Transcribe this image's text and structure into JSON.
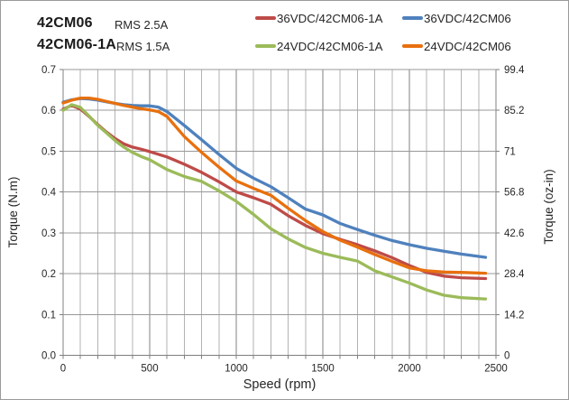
{
  "header": {
    "model_1": "42CM06",
    "rms_1": "RMS 2.5A",
    "model_2": "42CM06-1A",
    "rms_2": "RMS 1.5A"
  },
  "legend": {
    "position": "top-right",
    "items": [
      {
        "label": "36VDC/42CM06-1A",
        "color": "#BE4B48"
      },
      {
        "label": "36VDC/42CM06",
        "color": "#4F81BD"
      },
      {
        "label": "24VDC/42CM06-1A",
        "color": "#9BBB59"
      },
      {
        "label": "24VDC/42CM06",
        "color": "#E8700E"
      }
    ]
  },
  "chart_data": {
    "type": "line",
    "title": "",
    "xlabel": "Speed (rpm)",
    "ylabel_left": "Torque (N.m)",
    "ylabel_right": "Torque (oz-in)",
    "xlim": [
      0,
      2500
    ],
    "ylim_left": [
      0,
      0.7
    ],
    "ylim_right": [
      0,
      99.4
    ],
    "x_ticks": [
      "0",
      "500",
      "1000",
      "1500",
      "2000",
      "2500"
    ],
    "x_minor_step_rpm": 100,
    "y_ticks_left": [
      "0.0",
      "0.1",
      "0.2",
      "0.3",
      "0.4",
      "0.5",
      "0.6",
      "0.7"
    ],
    "y_ticks_right": [
      "0",
      "14.2",
      "28.4",
      "42.6",
      "56.8",
      "71",
      "85.2",
      "99.4"
    ],
    "grid": true,
    "colors": {
      "grid_minor_v": "#b3b3b3",
      "grid_major_v": "#818181",
      "grid_h": "#989898",
      "axis": "#7f7f7f",
      "tick_text": "#262626"
    },
    "series": [
      {
        "name": "36VDC/42CM06-1A",
        "color": "#BE4B48",
        "points": [
          [
            0,
            0.603
          ],
          [
            50,
            0.612
          ],
          [
            100,
            0.603
          ],
          [
            150,
            0.585
          ],
          [
            200,
            0.565
          ],
          [
            250,
            0.547
          ],
          [
            300,
            0.531
          ],
          [
            350,
            0.518
          ],
          [
            400,
            0.51
          ],
          [
            450,
            0.505
          ],
          [
            500,
            0.499
          ],
          [
            600,
            0.486
          ],
          [
            700,
            0.468
          ],
          [
            800,
            0.448
          ],
          [
            900,
            0.425
          ],
          [
            1000,
            0.4
          ],
          [
            1100,
            0.386
          ],
          [
            1200,
            0.37
          ],
          [
            1300,
            0.342
          ],
          [
            1400,
            0.318
          ],
          [
            1500,
            0.298
          ],
          [
            1600,
            0.284
          ],
          [
            1700,
            0.271
          ],
          [
            1800,
            0.256
          ],
          [
            1900,
            0.239
          ],
          [
            2000,
            0.22
          ],
          [
            2100,
            0.203
          ],
          [
            2200,
            0.194
          ],
          [
            2300,
            0.19
          ],
          [
            2440,
            0.188
          ]
        ]
      },
      {
        "name": "36VDC/42CM06",
        "color": "#4F81BD",
        "points": [
          [
            0,
            0.62
          ],
          [
            50,
            0.626
          ],
          [
            100,
            0.629
          ],
          [
            150,
            0.628
          ],
          [
            200,
            0.625
          ],
          [
            250,
            0.621
          ],
          [
            300,
            0.617
          ],
          [
            350,
            0.614
          ],
          [
            400,
            0.612
          ],
          [
            450,
            0.611
          ],
          [
            500,
            0.611
          ],
          [
            550,
            0.608
          ],
          [
            600,
            0.597
          ],
          [
            700,
            0.563
          ],
          [
            800,
            0.528
          ],
          [
            900,
            0.492
          ],
          [
            1000,
            0.458
          ],
          [
            1100,
            0.434
          ],
          [
            1200,
            0.413
          ],
          [
            1300,
            0.386
          ],
          [
            1400,
            0.358
          ],
          [
            1500,
            0.344
          ],
          [
            1600,
            0.323
          ],
          [
            1700,
            0.308
          ],
          [
            1800,
            0.294
          ],
          [
            1900,
            0.281
          ],
          [
            2000,
            0.271
          ],
          [
            2100,
            0.262
          ],
          [
            2200,
            0.255
          ],
          [
            2300,
            0.248
          ],
          [
            2440,
            0.24
          ]
        ]
      },
      {
        "name": "24VDC/42CM06-1A",
        "color": "#9BBB59",
        "points": [
          [
            0,
            0.6
          ],
          [
            50,
            0.614
          ],
          [
            100,
            0.607
          ],
          [
            150,
            0.586
          ],
          [
            200,
            0.563
          ],
          [
            250,
            0.545
          ],
          [
            300,
            0.526
          ],
          [
            350,
            0.51
          ],
          [
            400,
            0.497
          ],
          [
            450,
            0.487
          ],
          [
            500,
            0.479
          ],
          [
            600,
            0.455
          ],
          [
            700,
            0.438
          ],
          [
            800,
            0.426
          ],
          [
            900,
            0.403
          ],
          [
            1000,
            0.377
          ],
          [
            1100,
            0.345
          ],
          [
            1200,
            0.31
          ],
          [
            1300,
            0.285
          ],
          [
            1400,
            0.264
          ],
          [
            1500,
            0.25
          ],
          [
            1600,
            0.24
          ],
          [
            1700,
            0.231
          ],
          [
            1800,
            0.207
          ],
          [
            1900,
            0.192
          ],
          [
            2000,
            0.177
          ],
          [
            2100,
            0.16
          ],
          [
            2200,
            0.147
          ],
          [
            2300,
            0.141
          ],
          [
            2440,
            0.138
          ]
        ]
      },
      {
        "name": "24VDC/42CM06",
        "color": "#E8700E",
        "points": [
          [
            0,
            0.618
          ],
          [
            50,
            0.625
          ],
          [
            100,
            0.63
          ],
          [
            150,
            0.63
          ],
          [
            200,
            0.627
          ],
          [
            250,
            0.622
          ],
          [
            300,
            0.617
          ],
          [
            350,
            0.612
          ],
          [
            400,
            0.608
          ],
          [
            450,
            0.604
          ],
          [
            500,
            0.601
          ],
          [
            550,
            0.597
          ],
          [
            600,
            0.585
          ],
          [
            700,
            0.536
          ],
          [
            800,
            0.497
          ],
          [
            900,
            0.461
          ],
          [
            1000,
            0.427
          ],
          [
            1100,
            0.409
          ],
          [
            1200,
            0.392
          ],
          [
            1300,
            0.36
          ],
          [
            1400,
            0.33
          ],
          [
            1500,
            0.303
          ],
          [
            1600,
            0.282
          ],
          [
            1700,
            0.265
          ],
          [
            1800,
            0.247
          ],
          [
            1900,
            0.23
          ],
          [
            2000,
            0.214
          ],
          [
            2100,
            0.207
          ],
          [
            2200,
            0.204
          ],
          [
            2300,
            0.203
          ],
          [
            2440,
            0.201
          ]
        ]
      }
    ]
  }
}
